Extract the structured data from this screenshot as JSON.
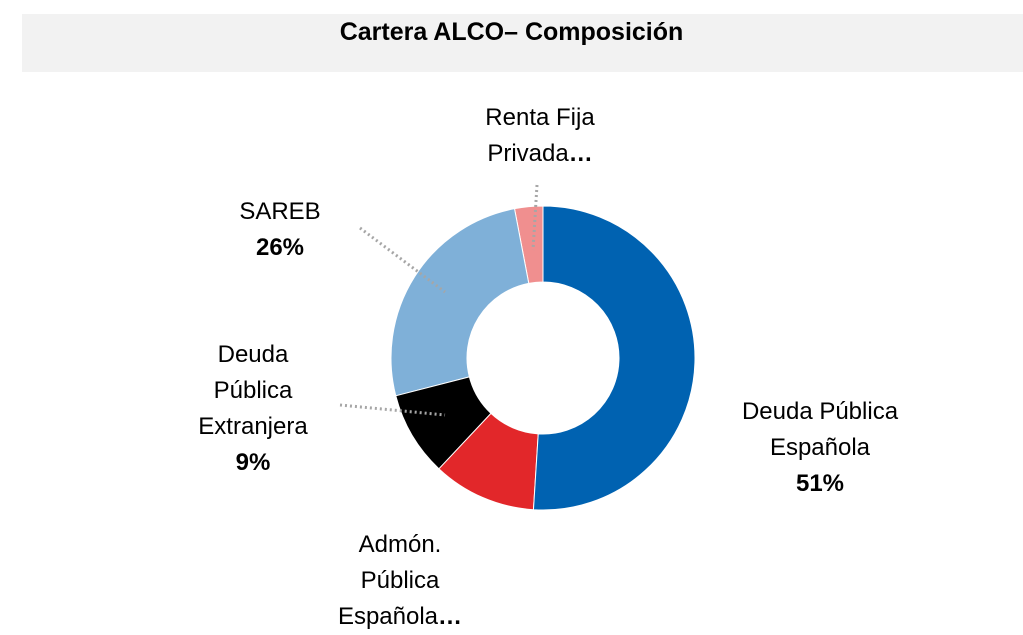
{
  "chart_data": {
    "type": "donut",
    "title": "Cartera ALCO– Composición",
    "categories": [
      "Deuda Pública Española",
      "Admón. Pública Española",
      "Deuda Pública Extranjera",
      "SAREB",
      "Renta Fija Privada"
    ],
    "values": [
      51,
      11,
      9,
      26,
      3
    ],
    "value_labels": [
      "51%",
      "…",
      "9%",
      "26%",
      "…"
    ],
    "colors": [
      "#0062b1",
      "#e2272a",
      "#000000",
      "#7fb0d8",
      "#f08f8f"
    ]
  }
}
